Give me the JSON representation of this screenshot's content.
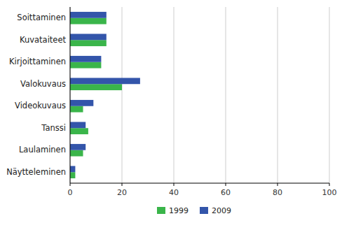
{
  "chart_data": {
    "type": "bar",
    "orientation": "horizontal",
    "categories": [
      "Soittaminen",
      "Kuvataiteet",
      "Kirjoittaminen",
      "Valokuvaus",
      "Videokuvaus",
      "Tanssi",
      "Laulaminen",
      "Näytteleminen"
    ],
    "series": [
      {
        "name": "1999",
        "color": "#3ab54a",
        "values": [
          14,
          14,
          12,
          20,
          5,
          7,
          5,
          2
        ]
      },
      {
        "name": "2009",
        "color": "#3355aa",
        "values": [
          14,
          14,
          12,
          27,
          9,
          6,
          6,
          2
        ]
      }
    ],
    "xlim": [
      0,
      100
    ],
    "xticks": [
      0,
      20,
      40,
      60,
      80,
      100
    ],
    "grid": true,
    "legend": "bottom"
  }
}
